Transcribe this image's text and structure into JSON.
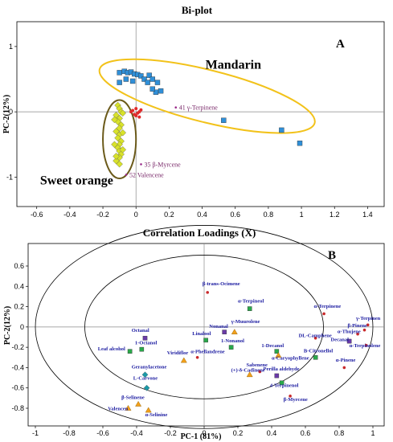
{
  "chart_data": [
    {
      "type": "scatter",
      "panel": "A",
      "title": "Bi-plot",
      "xlabel": "",
      "ylabel": "PC-2(12%)",
      "xlim": [
        -0.72,
        1.5
      ],
      "ylim": [
        -1.45,
        1.38
      ],
      "xticks": [
        "-0.6",
        "-0.4",
        "-0.2",
        "0",
        "0.2",
        "0.4",
        "0.6",
        "0.8",
        "1",
        "1.2",
        "1.4"
      ],
      "xtick_values": [
        -0.6,
        -0.4,
        -0.2,
        0,
        0.2,
        0.4,
        0.6,
        0.8,
        1.0,
        1.2,
        1.4
      ],
      "yticks": [
        "1",
        "0",
        "-1"
      ],
      "ytick_values": [
        1,
        0,
        -1
      ],
      "group_labels": [
        {
          "text": "Mandarin",
          "x": 0.42,
          "y": 0.66
        },
        {
          "text": "Sweet orange",
          "x": -0.58,
          "y": -1.11
        }
      ],
      "ellipses": [
        {
          "name": "Mandarin",
          "color": "#f2c21a",
          "cx": 0.43,
          "cy": 0.24,
          "rx": 0.67,
          "ry": 0.4,
          "rotate_deg": 14
        },
        {
          "name": "Sweet orange",
          "color": "#6b5a1a",
          "cx": -0.1,
          "cy": -0.42,
          "rx": 0.1,
          "ry": 0.6,
          "rotate_deg": 0
        }
      ],
      "series": [
        {
          "name": "Mandarin",
          "marker": "square",
          "color": "#2f8fd8",
          "points": [
            [
              -0.1,
              0.6
            ],
            [
              -0.07,
              0.62
            ],
            [
              -0.05,
              0.6
            ],
            [
              -0.03,
              0.61
            ],
            [
              -0.01,
              0.58
            ],
            [
              0.01,
              0.57
            ],
            [
              0.03,
              0.55
            ],
            [
              0.05,
              0.5
            ],
            [
              0.08,
              0.56
            ],
            [
              0.1,
              0.5
            ],
            [
              0.12,
              0.3
            ],
            [
              0.13,
              0.45
            ],
            [
              0.15,
              0.32
            ],
            [
              0.07,
              0.45
            ],
            [
              0.1,
              0.35
            ],
            [
              -0.02,
              0.47
            ],
            [
              -0.06,
              0.5
            ],
            [
              -0.1,
              0.45
            ],
            [
              0.53,
              -0.13
            ],
            [
              0.88,
              -0.28
            ],
            [
              0.99,
              -0.48
            ]
          ]
        },
        {
          "name": "Sweet orange",
          "marker": "diamond",
          "color": "#d8e22a",
          "points": [
            [
              -0.11,
              0.1
            ],
            [
              -0.1,
              0.05
            ],
            [
              -0.09,
              0.0
            ],
            [
              -0.12,
              -0.05
            ],
            [
              -0.1,
              -0.1
            ],
            [
              -0.11,
              -0.15
            ],
            [
              -0.09,
              -0.2
            ],
            [
              -0.1,
              -0.25
            ],
            [
              -0.12,
              -0.3
            ],
            [
              -0.1,
              -0.35
            ],
            [
              -0.11,
              -0.4
            ],
            [
              -0.09,
              -0.45
            ],
            [
              -0.1,
              -0.5
            ],
            [
              -0.11,
              -0.55
            ],
            [
              -0.1,
              -0.6
            ],
            [
              -0.09,
              -0.65
            ],
            [
              -0.1,
              -0.7
            ],
            [
              -0.12,
              -0.75
            ],
            [
              -0.1,
              -0.8
            ],
            [
              -0.08,
              -0.02
            ],
            [
              -0.13,
              -0.12
            ],
            [
              -0.08,
              -0.32
            ],
            [
              -0.13,
              -0.5
            ],
            [
              -0.08,
              -0.58
            ],
            [
              -0.12,
              -0.68
            ]
          ]
        },
        {
          "name": "Variables",
          "marker": "circle",
          "color": "#e02a2a",
          "points": [
            [
              -0.02,
              0.02
            ],
            [
              0.0,
              0.05
            ],
            [
              0.01,
              -0.02
            ],
            [
              0.02,
              0.0
            ],
            [
              -0.01,
              -0.04
            ],
            [
              0.03,
              0.03
            ],
            [
              0.0,
              -0.06
            ],
            [
              0.02,
              -0.08
            ],
            [
              -0.03,
              0.0
            ]
          ]
        }
      ],
      "annotations": [
        {
          "text": "41 γ-Terpinene",
          "x": 0.26,
          "y": 0.03,
          "color": "#9a2a8a"
        },
        {
          "text": "35 β-Myrcene",
          "x": 0.05,
          "y": -0.84,
          "color": "#9a2a8a"
        },
        {
          "text": "52 Valencene",
          "x": -0.04,
          "y": -1.0,
          "color": "#9a2a8a"
        }
      ]
    },
    {
      "type": "scatter",
      "panel": "B",
      "title": "Correlation Loadings (X)",
      "xlabel": "PC-1 (81%)",
      "ylabel": "PC-2(12%)",
      "xlim": [
        -1.0,
        1.0
      ],
      "ylim": [
        -1.0,
        0.72
      ],
      "xticks": [
        "-1",
        "-0.8",
        "-0.6",
        "-0.4",
        "-0.2",
        "0",
        "0.2",
        "0.4",
        "0.6",
        "0.8",
        "1"
      ],
      "xtick_values": [
        -1.0,
        -0.8,
        -0.6,
        -0.4,
        -0.2,
        0,
        0.2,
        0.4,
        0.6,
        0.8,
        1.0
      ],
      "yticks": [
        "0.6",
        "0.4",
        "0.2",
        "0",
        "-0.2",
        "-0.4",
        "-0.6",
        "-0.8"
      ],
      "ytick_values": [
        0.6,
        0.4,
        0.2,
        0,
        -0.2,
        -0.4,
        -0.6,
        -0.8
      ],
      "circles": [
        {
          "name": "outer",
          "r": 1.0
        },
        {
          "name": "inner",
          "r": 0.7071
        }
      ],
      "points": [
        {
          "label": "β-trans-Ocimene",
          "x": 0.02,
          "y": 0.34,
          "marker": "circle",
          "color": "#c8282a",
          "lx": -0.01,
          "ly": 0.41,
          "anchor": "start"
        },
        {
          "label": "α-Terpineol",
          "x": 0.27,
          "y": 0.18,
          "marker": "square",
          "color": "#2aa84a",
          "lx": 0.2,
          "ly": 0.24,
          "anchor": "start"
        },
        {
          "label": "α-Terpinene",
          "x": 0.71,
          "y": 0.13,
          "marker": "circle",
          "color": "#c8282a",
          "lx": 0.65,
          "ly": 0.19,
          "anchor": "start"
        },
        {
          "label": "γ-Terpinen",
          "x": 0.97,
          "y": 0.02,
          "marker": "circle",
          "color": "#c8282a",
          "lx": 0.9,
          "ly": 0.07,
          "anchor": "start"
        },
        {
          "label": "β-Pinene",
          "x": 0.95,
          "y": -0.03,
          "marker": "circle",
          "color": "#c8282a",
          "lx": 0.85,
          "ly": 0.0,
          "anchor": "start"
        },
        {
          "label": "α-Thujene",
          "x": 0.91,
          "y": -0.07,
          "marker": "circle",
          "color": "#c8282a",
          "lx": 0.79,
          "ly": -0.06,
          "anchor": "start"
        },
        {
          "label": "DL-Camphene",
          "x": 0.66,
          "y": -0.11,
          "marker": "circle",
          "color": "#c8282a",
          "lx": 0.56,
          "ly": -0.1,
          "anchor": "start"
        },
        {
          "label": "Decanal",
          "x": 0.86,
          "y": -0.14,
          "marker": "square",
          "color": "#6a3aa8",
          "lx": 0.75,
          "ly": -0.14,
          "anchor": "start"
        },
        {
          "label": "α-Terpinolene",
          "x": 0.96,
          "y": -0.18,
          "marker": "circle",
          "color": "#c8282a",
          "lx": 0.86,
          "ly": -0.2,
          "anchor": "start"
        },
        {
          "label": "Nonanal",
          "x": 0.12,
          "y": -0.05,
          "marker": "square",
          "color": "#6a3aa8",
          "lx": 0.03,
          "ly": -0.01,
          "anchor": "start"
        },
        {
          "label": "γ-Muurolene",
          "x": 0.18,
          "y": -0.05,
          "marker": "triangle",
          "color": "#f2a01a",
          "lx": 0.16,
          "ly": 0.04,
          "anchor": "start"
        },
        {
          "label": "Octanal",
          "x": -0.35,
          "y": -0.11,
          "marker": "square",
          "color": "#6a3aa8",
          "lx": -0.43,
          "ly": -0.05,
          "anchor": "start"
        },
        {
          "label": "Linalool",
          "x": 0.01,
          "y": -0.13,
          "marker": "square",
          "color": "#2aa84a",
          "lx": -0.07,
          "ly": -0.08,
          "anchor": "start"
        },
        {
          "label": "1-Octanol",
          "x": -0.37,
          "y": -0.22,
          "marker": "square",
          "color": "#2aa84a",
          "lx": -0.41,
          "ly": -0.17,
          "anchor": "start"
        },
        {
          "label": "1-Nonanol",
          "x": 0.16,
          "y": -0.2,
          "marker": "square",
          "color": "#2aa84a",
          "lx": 0.1,
          "ly": -0.15,
          "anchor": "start"
        },
        {
          "label": "1-Decanol",
          "x": 0.43,
          "y": -0.24,
          "marker": "square",
          "color": "#2aa84a",
          "lx": 0.34,
          "ly": -0.2,
          "anchor": "start"
        },
        {
          "label": "Leaf alcohol",
          "x": -0.44,
          "y": -0.24,
          "marker": "square",
          "color": "#2aa84a",
          "lx": -0.63,
          "ly": -0.23,
          "anchor": "start"
        },
        {
          "label": "B-Citronellol",
          "x": 0.66,
          "y": -0.3,
          "marker": "square",
          "color": "#2aa84a",
          "lx": 0.59,
          "ly": -0.25,
          "anchor": "start"
        },
        {
          "label": "Viridiflor",
          "x": -0.12,
          "y": -0.33,
          "marker": "triangle",
          "color": "#f2a01a",
          "lx": -0.22,
          "ly": -0.27,
          "anchor": "start"
        },
        {
          "label": "α-Phellandrene",
          "x": -0.04,
          "y": -0.3,
          "marker": "circle",
          "color": "#c8282a",
          "lx": -0.08,
          "ly": -0.26,
          "anchor": "start"
        },
        {
          "label": "α-Caryophyllene",
          "x": 0.44,
          "y": -0.28,
          "marker": "triangle",
          "color": "#f2a01a",
          "lx": 0.4,
          "ly": -0.32,
          "anchor": "start"
        },
        {
          "label": "α-Pinene",
          "x": 0.83,
          "y": -0.4,
          "marker": "circle",
          "color": "#c8282a",
          "lx": 0.78,
          "ly": -0.34,
          "anchor": "start"
        },
        {
          "label": "Geranylacetone",
          "x": -0.35,
          "y": -0.47,
          "marker": "diamond",
          "color": "#1a9aa8",
          "lx": -0.43,
          "ly": -0.41,
          "anchor": "start"
        },
        {
          "label": "Sabenene",
          "x": 0.33,
          "y": -0.44,
          "marker": "circle",
          "color": "#c8282a",
          "lx": 0.25,
          "ly": -0.39,
          "anchor": "start"
        },
        {
          "label": "Perilla aldehyde",
          "x": 0.43,
          "y": -0.48,
          "marker": "square",
          "color": "#6a3aa8",
          "lx": 0.35,
          "ly": -0.43,
          "anchor": "start"
        },
        {
          "label": "(+)-δ-Cadinene",
          "x": 0.27,
          "y": -0.47,
          "marker": "triangle",
          "color": "#f2a01a",
          "lx": 0.16,
          "ly": -0.44,
          "anchor": "start"
        },
        {
          "label": "L-Carvone",
          "x": -0.34,
          "y": -0.6,
          "marker": "diamond",
          "color": "#1a9aa8",
          "lx": -0.42,
          "ly": -0.52,
          "anchor": "start"
        },
        {
          "label": "4-Terpinenol",
          "x": 0.46,
          "y": -0.55,
          "marker": "square",
          "color": "#2aa84a",
          "lx": 0.39,
          "ly": -0.59,
          "anchor": "start"
        },
        {
          "label": "β-Myrcene",
          "x": 0.51,
          "y": -0.68,
          "marker": "circle",
          "color": "#c8282a",
          "lx": 0.47,
          "ly": -0.73,
          "anchor": "start"
        },
        {
          "label": "β-Selinene",
          "x": -0.39,
          "y": -0.76,
          "marker": "triangle",
          "color": "#f2a01a",
          "lx": -0.49,
          "ly": -0.71,
          "anchor": "start"
        },
        {
          "label": "Valencen",
          "x": -0.45,
          "y": -0.8,
          "marker": "triangle",
          "color": "#f2a01a",
          "lx": -0.57,
          "ly": -0.82,
          "anchor": "start"
        },
        {
          "label": "α-Selinine",
          "x": -0.33,
          "y": -0.82,
          "marker": "triangle",
          "color": "#f2a01a",
          "lx": -0.35,
          "ly": -0.88,
          "anchor": "start"
        }
      ]
    }
  ]
}
